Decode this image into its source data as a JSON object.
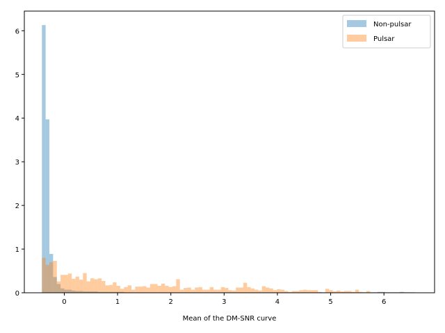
{
  "chart_data": {
    "type": "bar",
    "title": "",
    "xlabel": "Mean of the DM-SNR curve",
    "ylabel": "",
    "xlim": [
      -0.75,
      6.95
    ],
    "ylim": [
      0,
      6.45
    ],
    "xticks": [
      0,
      1,
      2,
      3,
      4,
      5,
      6
    ],
    "yticks": [
      0,
      1,
      2,
      3,
      4,
      5,
      6
    ],
    "grid": false,
    "legend_position": "top-right",
    "bin_width": 0.07,
    "series": [
      {
        "name": "Non-pulsar",
        "color": "#1f77b4",
        "alpha": 0.4,
        "bins": [
          [
            -0.42,
            6.13
          ],
          [
            -0.35,
            3.97
          ],
          [
            -0.28,
            0.89
          ],
          [
            -0.21,
            0.36
          ],
          [
            -0.14,
            0.2
          ],
          [
            -0.07,
            0.1
          ],
          [
            0.0,
            0.07
          ],
          [
            0.07,
            0.07
          ],
          [
            0.14,
            0.05
          ],
          [
            0.21,
            0.04
          ],
          [
            0.28,
            0.04
          ],
          [
            0.35,
            0.03
          ],
          [
            0.42,
            0.03
          ],
          [
            0.49,
            0.03
          ],
          [
            0.56,
            0.03
          ],
          [
            0.63,
            0.02
          ],
          [
            0.7,
            0.02
          ],
          [
            0.77,
            0.02
          ],
          [
            0.84,
            0.02
          ],
          [
            0.91,
            0.02
          ],
          [
            0.98,
            0.02
          ],
          [
            1.05,
            0.02
          ],
          [
            1.12,
            0.01
          ],
          [
            1.19,
            0.01
          ],
          [
            1.26,
            0.01
          ],
          [
            1.33,
            0.01
          ],
          [
            1.4,
            0.01
          ],
          [
            1.47,
            0.01
          ],
          [
            1.54,
            0.01
          ],
          [
            1.61,
            0.01
          ],
          [
            1.68,
            0.01
          ],
          [
            1.75,
            0.01
          ],
          [
            1.82,
            0.01
          ],
          [
            1.89,
            0.01
          ],
          [
            1.96,
            0.01
          ],
          [
            2.03,
            0.01
          ],
          [
            2.1,
            0.01
          ],
          [
            2.17,
            0.01
          ],
          [
            2.24,
            0.01
          ],
          [
            2.31,
            0.01
          ],
          [
            2.38,
            0.01
          ],
          [
            2.45,
            0.01
          ],
          [
            2.52,
            0.01
          ],
          [
            2.59,
            0.01
          ],
          [
            2.66,
            0.01
          ],
          [
            2.73,
            0.01
          ],
          [
            2.8,
            0.01
          ],
          [
            2.87,
            0.01
          ],
          [
            2.94,
            0.01
          ],
          [
            3.01,
            0.01
          ],
          [
            3.08,
            0.01
          ],
          [
            3.15,
            0.01
          ],
          [
            3.22,
            0.01
          ],
          [
            3.29,
            0.01
          ],
          [
            3.36,
            0.01
          ],
          [
            3.43,
            0.01
          ],
          [
            3.5,
            0.01
          ],
          [
            3.57,
            0.01
          ],
          [
            3.64,
            0.01
          ],
          [
            3.71,
            0.01
          ],
          [
            3.78,
            0.01
          ],
          [
            3.85,
            0.01
          ],
          [
            3.92,
            0.01
          ],
          [
            3.99,
            0.01
          ],
          [
            4.06,
            0.01
          ],
          [
            4.13,
            0.01
          ],
          [
            4.2,
            0.01
          ],
          [
            4.27,
            0.01
          ],
          [
            4.34,
            0.01
          ],
          [
            4.41,
            0.01
          ],
          [
            4.48,
            0.01
          ],
          [
            4.55,
            0.01
          ],
          [
            4.62,
            0.01
          ],
          [
            4.69,
            0.01
          ],
          [
            4.76,
            0.01
          ],
          [
            4.83,
            0.01
          ],
          [
            4.9,
            0.01
          ],
          [
            4.97,
            0.01
          ],
          [
            5.04,
            0.01
          ],
          [
            5.11,
            0.01
          ],
          [
            5.18,
            0.01
          ],
          [
            5.25,
            0.01
          ],
          [
            5.32,
            0.01
          ],
          [
            5.39,
            0.01
          ],
          [
            5.46,
            0.01
          ],
          [
            5.53,
            0.01
          ],
          [
            5.6,
            0.01
          ],
          [
            5.67,
            0.01
          ],
          [
            5.74,
            0.01
          ],
          [
            5.81,
            0.01
          ],
          [
            5.88,
            0.02
          ],
          [
            5.95,
            0.02
          ],
          [
            6.02,
            0.01
          ],
          [
            6.09,
            0.01
          ],
          [
            6.16,
            0.01
          ],
          [
            6.23,
            0.01
          ],
          [
            6.3,
            0.02
          ],
          [
            6.37,
            0.01
          ],
          [
            6.44,
            0.01
          ],
          [
            6.51,
            0.01
          ]
        ]
      },
      {
        "name": "Pulsar",
        "color": "#ff7f0e",
        "alpha": 0.4,
        "bins": [
          [
            -0.42,
            0.8
          ],
          [
            -0.35,
            0.64
          ],
          [
            -0.28,
            0.7
          ],
          [
            -0.21,
            0.73
          ],
          [
            -0.14,
            0.26
          ],
          [
            -0.07,
            0.41
          ],
          [
            0.0,
            0.41
          ],
          [
            0.07,
            0.44
          ],
          [
            0.14,
            0.32
          ],
          [
            0.21,
            0.37
          ],
          [
            0.28,
            0.3
          ],
          [
            0.35,
            0.45
          ],
          [
            0.42,
            0.26
          ],
          [
            0.49,
            0.33
          ],
          [
            0.56,
            0.31
          ],
          [
            0.63,
            0.33
          ],
          [
            0.7,
            0.27
          ],
          [
            0.77,
            0.17
          ],
          [
            0.84,
            0.18
          ],
          [
            0.91,
            0.24
          ],
          [
            0.98,
            0.16
          ],
          [
            1.05,
            0.09
          ],
          [
            1.12,
            0.13
          ],
          [
            1.19,
            0.17
          ],
          [
            1.26,
            0.07
          ],
          [
            1.33,
            0.14
          ],
          [
            1.4,
            0.14
          ],
          [
            1.47,
            0.15
          ],
          [
            1.54,
            0.12
          ],
          [
            1.61,
            0.2
          ],
          [
            1.68,
            0.2
          ],
          [
            1.75,
            0.16
          ],
          [
            1.82,
            0.21
          ],
          [
            1.89,
            0.16
          ],
          [
            1.96,
            0.13
          ],
          [
            2.03,
            0.15
          ],
          [
            2.1,
            0.31
          ],
          [
            2.17,
            0.07
          ],
          [
            2.24,
            0.11
          ],
          [
            2.31,
            0.12
          ],
          [
            2.38,
            0.07
          ],
          [
            2.45,
            0.12
          ],
          [
            2.52,
            0.13
          ],
          [
            2.59,
            0.07
          ],
          [
            2.66,
            0.07
          ],
          [
            2.73,
            0.13
          ],
          [
            2.8,
            0.07
          ],
          [
            2.87,
            0.07
          ],
          [
            2.94,
            0.13
          ],
          [
            3.01,
            0.11
          ],
          [
            3.08,
            0.06
          ],
          [
            3.15,
            0.05
          ],
          [
            3.22,
            0.12
          ],
          [
            3.29,
            0.12
          ],
          [
            3.36,
            0.23
          ],
          [
            3.43,
            0.13
          ],
          [
            3.5,
            0.1
          ],
          [
            3.57,
            0.07
          ],
          [
            3.64,
            0.05
          ],
          [
            3.71,
            0.15
          ],
          [
            3.78,
            0.12
          ],
          [
            3.85,
            0.1
          ],
          [
            3.92,
            0.06
          ],
          [
            3.99,
            0.08
          ],
          [
            4.06,
            0.07
          ],
          [
            4.13,
            0.04
          ],
          [
            4.2,
            0.02
          ],
          [
            4.27,
            0.04
          ],
          [
            4.34,
            0.04
          ],
          [
            4.41,
            0.06
          ],
          [
            4.48,
            0.07
          ],
          [
            4.55,
            0.06
          ],
          [
            4.62,
            0.06
          ],
          [
            4.69,
            0.06
          ],
          [
            4.76,
            0.02
          ],
          [
            4.83,
            0.01
          ],
          [
            4.9,
            0.09
          ],
          [
            4.97,
            0.06
          ],
          [
            5.04,
            0.03
          ],
          [
            5.11,
            0.05
          ],
          [
            5.18,
            0.03
          ],
          [
            5.25,
            0.04
          ],
          [
            5.32,
            0.04
          ],
          [
            5.39,
            0.02
          ],
          [
            5.46,
            0.07
          ],
          [
            5.53,
            0.02
          ],
          [
            5.6,
            0.01
          ],
          [
            5.67,
            0.04
          ],
          [
            5.74,
            0.01
          ],
          [
            5.81,
            0.01
          ],
          [
            5.88,
            0.01
          ],
          [
            5.95,
            0.01
          ],
          [
            6.02,
            0.01
          ],
          [
            6.09,
            0.01
          ],
          [
            6.16,
            0.01
          ],
          [
            6.23,
            0.01
          ],
          [
            6.3,
            0.01
          ],
          [
            6.37,
            0.01
          ],
          [
            6.44,
            0.01
          ],
          [
            6.51,
            0.01
          ]
        ]
      }
    ]
  }
}
